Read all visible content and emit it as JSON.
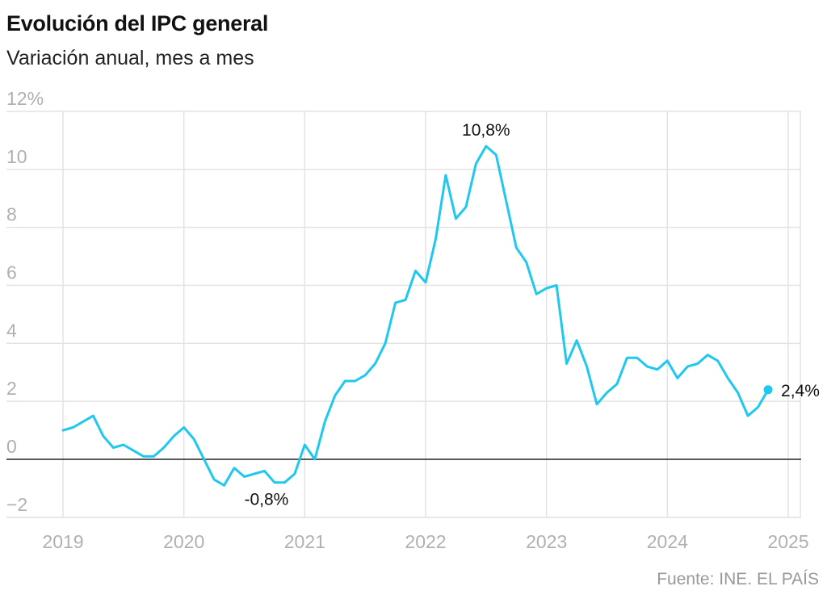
{
  "header": {
    "title": "Evolución del IPC general",
    "subtitle": "Variación anual, mes a mes"
  },
  "footer": {
    "source": "Fuente: INE. EL PAÍS"
  },
  "colors": {
    "line": "#1EC8EE",
    "grid": "#e3e3e3",
    "zero": "#222222",
    "tick": "#b0b0b0"
  },
  "chart_data": {
    "type": "line",
    "title": "Evolución del IPC general",
    "subtitle": "Variación anual, mes a mes",
    "xlabel": "",
    "ylabel": "",
    "ylim": [
      -2,
      12
    ],
    "xlim": [
      2019,
      2025
    ],
    "grid": true,
    "y_ticks": [
      {
        "value": 12,
        "label": "12%"
      },
      {
        "value": 10,
        "label": "10"
      },
      {
        "value": 8,
        "label": "8"
      },
      {
        "value": 6,
        "label": "6"
      },
      {
        "value": 4,
        "label": "4"
      },
      {
        "value": 2,
        "label": "2"
      },
      {
        "value": 0,
        "label": "0"
      },
      {
        "value": -2,
        "label": "−2"
      }
    ],
    "x_ticks": [
      {
        "value": 2019,
        "label": "2019"
      },
      {
        "value": 2020,
        "label": "2020"
      },
      {
        "value": 2021,
        "label": "2021"
      },
      {
        "value": 2022,
        "label": "2022"
      },
      {
        "value": 2023,
        "label": "2023"
      },
      {
        "value": 2024,
        "label": "2024"
      },
      {
        "value": 2025,
        "label": "2025"
      }
    ],
    "start": "2019-01",
    "series": [
      {
        "values": [
          1.0,
          1.1,
          1.3,
          1.5,
          0.8,
          0.4,
          0.5,
          0.3,
          0.1,
          0.1,
          0.4,
          0.8,
          1.1,
          0.7,
          0.0,
          -0.7,
          -0.9,
          -0.3,
          -0.6,
          -0.5,
          -0.4,
          -0.8,
          -0.8,
          -0.5,
          0.5,
          0.0,
          1.3,
          2.2,
          2.7,
          2.7,
          2.9,
          3.3,
          4.0,
          5.4,
          5.5,
          6.5,
          6.1,
          7.6,
          9.8,
          8.3,
          8.7,
          10.2,
          10.8,
          10.5,
          8.9,
          7.3,
          6.8,
          5.7,
          5.9,
          6.0,
          3.3,
          4.1,
          3.2,
          1.9,
          2.3,
          2.6,
          3.5,
          3.5,
          3.2,
          3.1,
          3.4,
          2.8,
          3.2,
          3.3,
          3.6,
          3.4,
          2.8,
          2.3,
          1.5,
          1.8,
          2.4
        ]
      }
    ],
    "annotations": [
      {
        "label": "10,8%",
        "x": "2022-07",
        "y": 10.8
      },
      {
        "label": "-0,8%",
        "x": "2020-10",
        "y": -0.8
      },
      {
        "label": "2,4%",
        "x": "2024-11",
        "y": 2.4
      }
    ]
  }
}
